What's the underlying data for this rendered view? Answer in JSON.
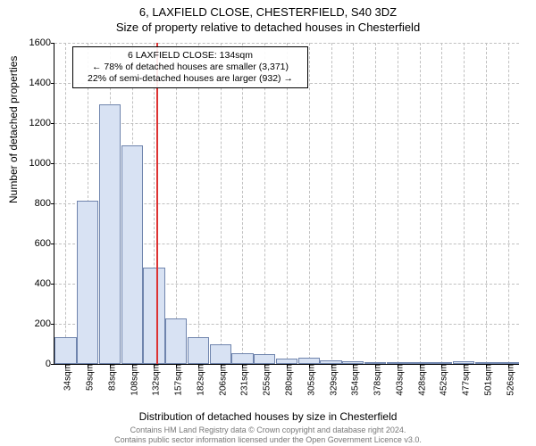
{
  "header": {
    "line1": "6, LAXFIELD CLOSE, CHESTERFIELD, S40 3DZ",
    "line2": "Size of property relative to detached houses in Chesterfield"
  },
  "chart": {
    "type": "bar",
    "background_color": "#ffffff",
    "grid_color": "#c0c0c0",
    "bar_fill": "#d8e2f3",
    "bar_stroke": "#6f84ad",
    "ylim": [
      0,
      1600
    ],
    "ytick_step": 200,
    "yticks": [
      0,
      200,
      400,
      600,
      800,
      1000,
      1200,
      1400,
      1600
    ],
    "ylabel": "Number of detached properties",
    "xlabel": "Distribution of detached houses by size in Chesterfield",
    "xtick_labels": [
      "34sqm",
      "59sqm",
      "83sqm",
      "108sqm",
      "132sqm",
      "157sqm",
      "182sqm",
      "206sqm",
      "231sqm",
      "255sqm",
      "280sqm",
      "305sqm",
      "329sqm",
      "354sqm",
      "378sqm",
      "403sqm",
      "428sqm",
      "452sqm",
      "477sqm",
      "501sqm",
      "526sqm"
    ],
    "bar_values": [
      135,
      815,
      1295,
      1090,
      480,
      225,
      135,
      100,
      55,
      50,
      25,
      30,
      18,
      12,
      10,
      7,
      5,
      4,
      12,
      3,
      2
    ],
    "marker": {
      "index": 4.1,
      "color": "#dd3333",
      "box": {
        "line1": "6 LAXFIELD CLOSE: 134sqm",
        "line2": "← 78% of detached houses are smaller (3,371)",
        "line3": "22% of semi-detached houses are larger (932) →"
      }
    }
  },
  "footer": {
    "line1": "Contains HM Land Registry data © Crown copyright and database right 2024.",
    "line2": "Contains public sector information licensed under the Open Government Licence v3.0."
  }
}
